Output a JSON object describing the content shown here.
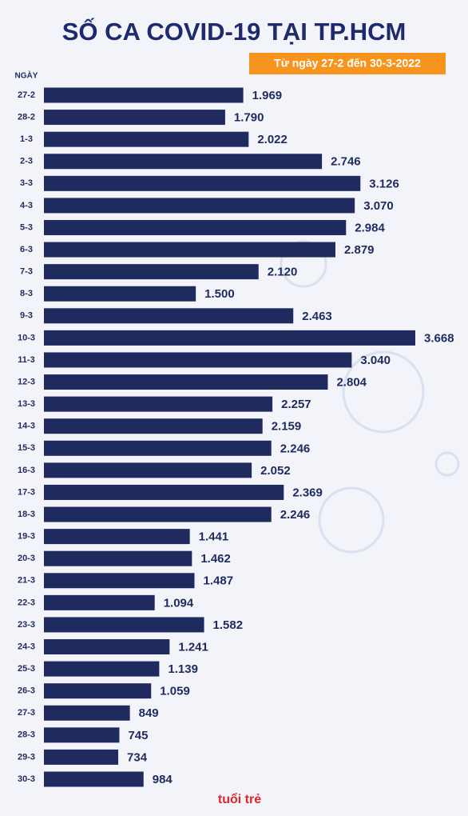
{
  "chart_data": {
    "type": "bar",
    "orientation": "horizontal",
    "title": "SỐ CA COVID-19 TẠI TP.HCM",
    "subtitle": "Từ ngày 27-2 đến 30-3-2022",
    "y_label": "NGÀY",
    "source": "tuổi trẻ",
    "color": "#1f2a5e",
    "categories": [
      "27-2",
      "28-2",
      "1-3",
      "2-3",
      "3-3",
      "4-3",
      "5-3",
      "6-3",
      "7-3",
      "8-3",
      "9-3",
      "10-3",
      "11-3",
      "12-3",
      "13-3",
      "14-3",
      "15-3",
      "16-3",
      "17-3",
      "18-3",
      "19-3",
      "20-3",
      "21-3",
      "22-3",
      "23-3",
      "24-3",
      "25-3",
      "26-3",
      "27-3",
      "28-3",
      "29-3",
      "30-3"
    ],
    "values": [
      1969,
      1790,
      2022,
      2746,
      3126,
      3070,
      2984,
      2879,
      2120,
      1500,
      2463,
      3668,
      3040,
      2804,
      2257,
      2159,
      2246,
      2052,
      2369,
      2246,
      1441,
      1462,
      1487,
      1094,
      1582,
      1241,
      1139,
      1059,
      849,
      745,
      734,
      984
    ],
    "value_labels": [
      "1.969",
      "1.790",
      "2.022",
      "2.746",
      "3.126",
      "3.070",
      "2.984",
      "2.879",
      "2.120",
      "1.500",
      "2.463",
      "3.668",
      "3.040",
      "2.804",
      "2.257",
      "2.159",
      "2.246",
      "2.052",
      "2.369",
      "2.246",
      "1.441",
      "1.462",
      "1.487",
      "1.094",
      "1.582",
      "1.241",
      "1.139",
      "1.059",
      "849",
      "745",
      "734",
      "984"
    ]
  }
}
